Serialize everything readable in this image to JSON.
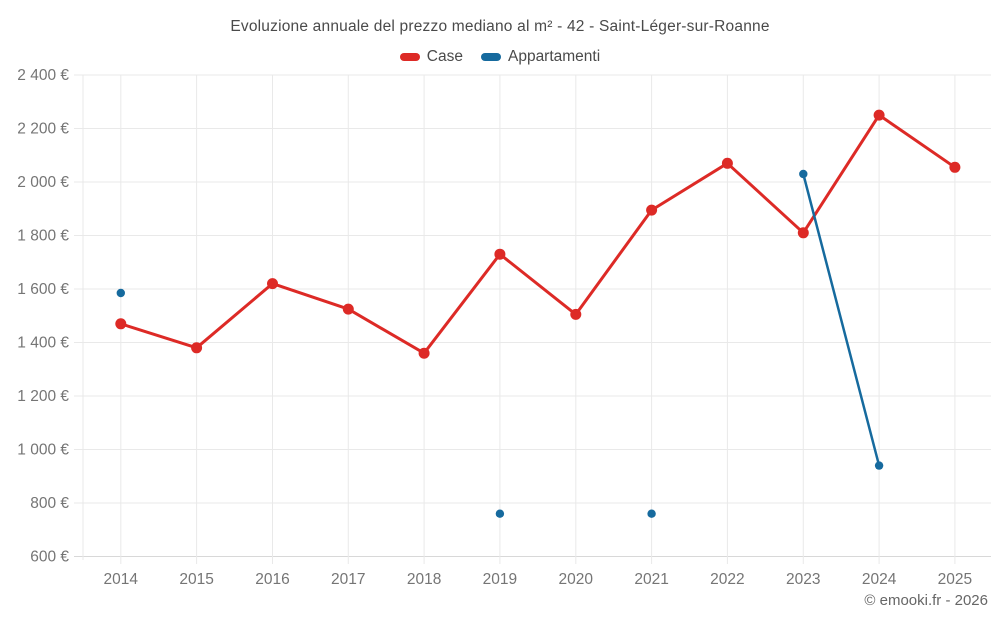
{
  "title": "Evoluzione annuale del prezzo mediano al m² - 42 - Saint-Léger-sur-Roanne",
  "watermark": "© emooki.fr - 2026",
  "chart_data": {
    "type": "line",
    "title": "Evoluzione annuale del prezzo mediano al m² - 42 - Saint-Léger-sur-Roanne",
    "x_categories": [
      "2014",
      "2015",
      "2016",
      "2017",
      "2018",
      "2019",
      "2020",
      "2021",
      "2022",
      "2023",
      "2024",
      "2025"
    ],
    "series": [
      {
        "name": "Case",
        "color": "#dd2a26",
        "values": [
          1470,
          1380,
          1620,
          1525,
          1360,
          1730,
          1505,
          1895,
          2070,
          1810,
          2250,
          2055
        ]
      },
      {
        "name": "Appartamenti",
        "color": "#166a9e",
        "values": [
          1585,
          null,
          null,
          null,
          null,
          760,
          null,
          760,
          null,
          2030,
          940,
          null
        ]
      }
    ],
    "ylim": [
      600,
      2400
    ],
    "ytick_step": 200,
    "ytick_labels": [
      "600 €",
      "800 €",
      "1 000 €",
      "1 200 €",
      "1 400 €",
      "1 600 €",
      "1 800 €",
      "2 000 €",
      "2 200 €",
      "2 400 €"
    ],
    "ylabel": "",
    "xlabel": "",
    "grid": true,
    "legend_position": "top",
    "notes": "Appartamenti has isolated points in 2014, 2019, 2021 and a connected segment 2023-2024"
  }
}
